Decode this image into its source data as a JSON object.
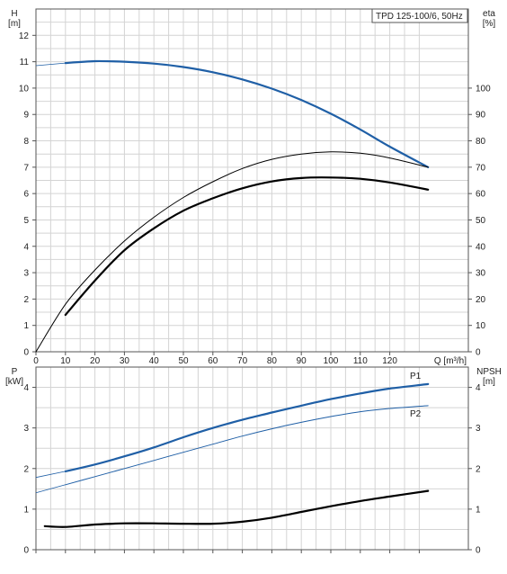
{
  "title_box": "TPD 125-100/6, 50Hz",
  "chart_data": [
    {
      "type": "line",
      "name": "top",
      "xlabel": "Q [m³/h]",
      "ylabel_left_top": "H",
      "ylabel_left_unit": "[m]",
      "ylabel_right_top": "eta",
      "ylabel_right_unit": "[%]",
      "xlim": [
        0,
        135
      ],
      "xticks": [
        0,
        10,
        20,
        30,
        40,
        50,
        60,
        70,
        80,
        90,
        100,
        110,
        120
      ],
      "ylim_left": [
        0,
        13
      ],
      "yticks_left": [
        0,
        1,
        2,
        3,
        4,
        5,
        6,
        7,
        8,
        9,
        10,
        11,
        12
      ],
      "ylim_right": [
        0,
        130
      ],
      "yticks_right": [
        0,
        10,
        20,
        30,
        40,
        50,
        60,
        70,
        80,
        90,
        100
      ],
      "grid": true,
      "series": [
        {
          "axis": "left",
          "color": "#1f5fa6",
          "width": 2.2,
          "points": [
            [
              0,
              10.85
            ],
            [
              10,
              10.95
            ],
            [
              20,
              11.02
            ],
            [
              30,
              11.0
            ],
            [
              40,
              10.93
            ],
            [
              50,
              10.8
            ],
            [
              60,
              10.6
            ],
            [
              70,
              10.33
            ],
            [
              80,
              9.98
            ],
            [
              90,
              9.55
            ],
            [
              100,
              9.03
            ],
            [
              110,
              8.43
            ],
            [
              120,
              7.78
            ],
            [
              133,
              7.0
            ]
          ],
          "dashed_from": [
            0,
            10
          ]
        },
        {
          "axis": "right",
          "color": "#000000",
          "width": 1,
          "points": [
            [
              0,
              0
            ],
            [
              10,
              18
            ],
            [
              20,
              31
            ],
            [
              30,
              42
            ],
            [
              40,
              51
            ],
            [
              50,
              58.5
            ],
            [
              60,
              64.5
            ],
            [
              70,
              69.5
            ],
            [
              80,
              73
            ],
            [
              90,
              75
            ],
            [
              100,
              75.8
            ],
            [
              110,
              75.3
            ],
            [
              120,
              73.5
            ],
            [
              133,
              70
            ]
          ]
        },
        {
          "axis": "right",
          "color": "#000000",
          "width": 2.2,
          "points": [
            [
              10,
              14
            ],
            [
              20,
              27
            ],
            [
              30,
              38.5
            ],
            [
              40,
              46.8
            ],
            [
              50,
              53.5
            ],
            [
              60,
              58.2
            ],
            [
              70,
              62
            ],
            [
              80,
              64.6
            ],
            [
              90,
              65.9
            ],
            [
              100,
              66.1
            ],
            [
              110,
              65.6
            ],
            [
              120,
              64.2
            ],
            [
              133,
              61.5
            ]
          ]
        }
      ]
    },
    {
      "type": "line",
      "name": "bottom",
      "ylabel_left_top": "P",
      "ylabel_left_unit": "[kW]",
      "ylabel_right_top": "NPSH",
      "ylabel_right_unit": "[m]",
      "xlim": [
        0,
        135
      ],
      "ylim_left": [
        0,
        4.5
      ],
      "yticks_left": [
        0,
        1,
        2,
        3,
        4
      ],
      "ylim_right": [
        0,
        4.5
      ],
      "yticks_right": [
        0,
        1,
        2,
        3,
        4
      ],
      "grid": true,
      "series": [
        {
          "label": "P1",
          "axis": "left",
          "color": "#1f5fa6",
          "width": 2.2,
          "points": [
            [
              0,
              1.78
            ],
            [
              10,
              1.93
            ],
            [
              20,
              2.1
            ],
            [
              30,
              2.3
            ],
            [
              40,
              2.52
            ],
            [
              50,
              2.77
            ],
            [
              60,
              3.0
            ],
            [
              70,
              3.2
            ],
            [
              80,
              3.38
            ],
            [
              90,
              3.55
            ],
            [
              100,
              3.71
            ],
            [
              110,
              3.85
            ],
            [
              120,
              3.97
            ],
            [
              133,
              4.08
            ]
          ],
          "dashed_from": [
            0,
            10
          ]
        },
        {
          "label": "P2",
          "axis": "left",
          "color": "#1f5fa6",
          "width": 1,
          "points": [
            [
              0,
              1.4
            ],
            [
              10,
              1.6
            ],
            [
              20,
              1.8
            ],
            [
              30,
              2.0
            ],
            [
              40,
              2.2
            ],
            [
              50,
              2.4
            ],
            [
              60,
              2.6
            ],
            [
              70,
              2.8
            ],
            [
              80,
              2.98
            ],
            [
              90,
              3.14
            ],
            [
              100,
              3.28
            ],
            [
              110,
              3.4
            ],
            [
              120,
              3.48
            ],
            [
              133,
              3.55
            ]
          ],
          "dashed_from": [
            0,
            10
          ]
        },
        {
          "axis": "right",
          "color": "#000000",
          "width": 2.2,
          "points": [
            [
              3,
              0.58
            ],
            [
              10,
              0.56
            ],
            [
              20,
              0.62
            ],
            [
              30,
              0.65
            ],
            [
              40,
              0.65
            ],
            [
              50,
              0.64
            ],
            [
              60,
              0.64
            ],
            [
              70,
              0.69
            ],
            [
              80,
              0.79
            ],
            [
              90,
              0.93
            ],
            [
              100,
              1.07
            ],
            [
              110,
              1.2
            ],
            [
              120,
              1.31
            ],
            [
              133,
              1.45
            ]
          ]
        }
      ]
    }
  ]
}
